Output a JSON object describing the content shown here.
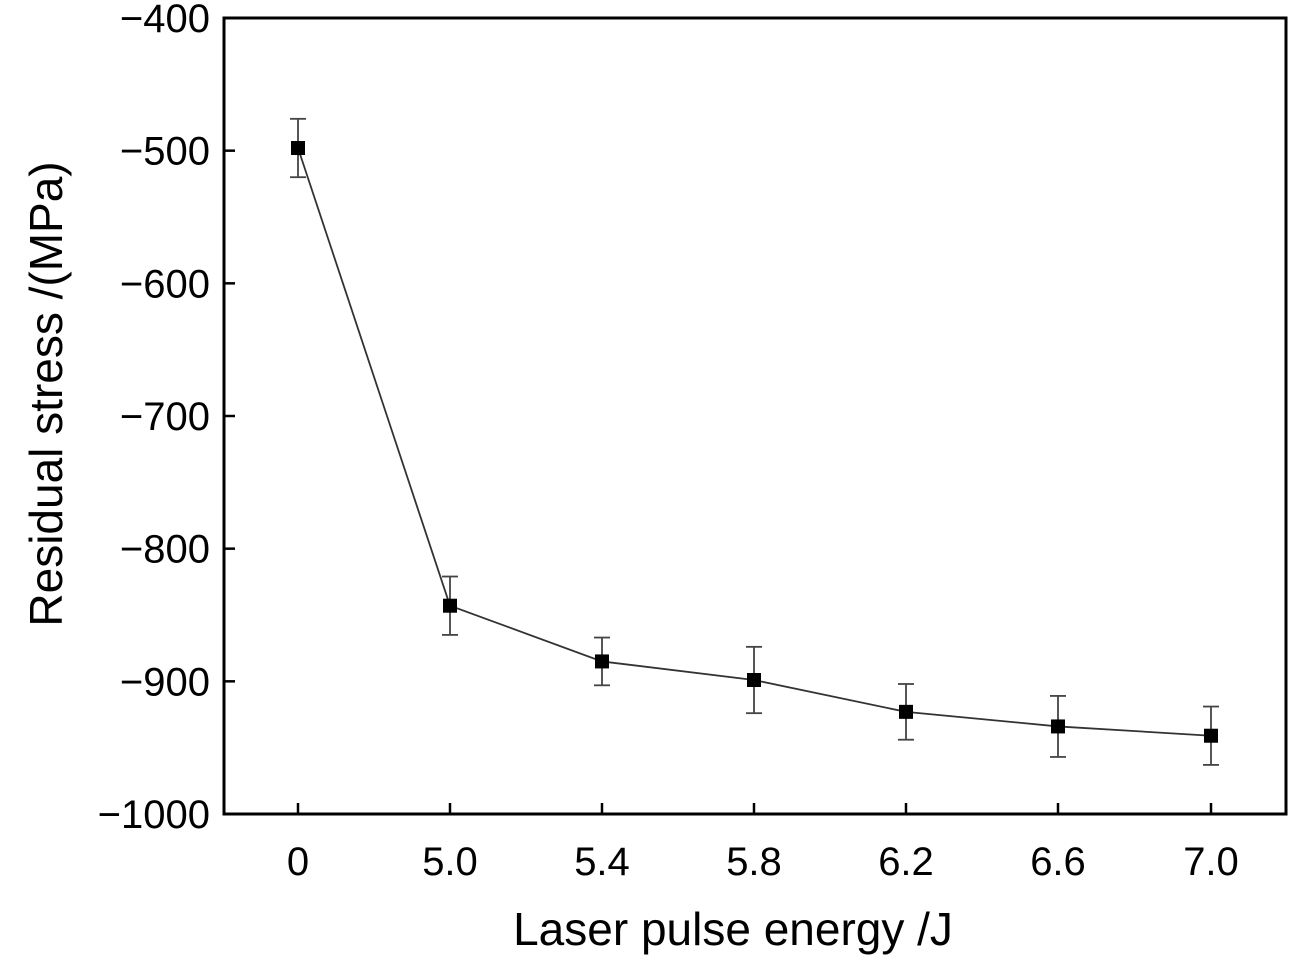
{
  "chart_data": {
    "type": "line",
    "xlabel": "Laser pulse energy /J",
    "ylabel": "Residual stress /(MPa)",
    "categories": [
      "0",
      "5.0",
      "5.4",
      "5.8",
      "6.2",
      "6.6",
      "7.0"
    ],
    "y_ticks": [
      "−400",
      "−500",
      "−600",
      "−700",
      "−800",
      "−900",
      "−1000"
    ],
    "y_tick_values": [
      -400,
      -500,
      -600,
      -700,
      -800,
      -900,
      -1000
    ],
    "ylim": [
      -1000,
      -400
    ],
    "grid": false,
    "legend": "none",
    "series": [
      {
        "values": [
          -498,
          -843,
          -885,
          -899,
          -923,
          -934,
          -941
        ],
        "error": [
          22,
          22,
          18,
          25,
          21,
          23,
          22
        ],
        "marker": "square",
        "color": "#000000"
      }
    ]
  }
}
